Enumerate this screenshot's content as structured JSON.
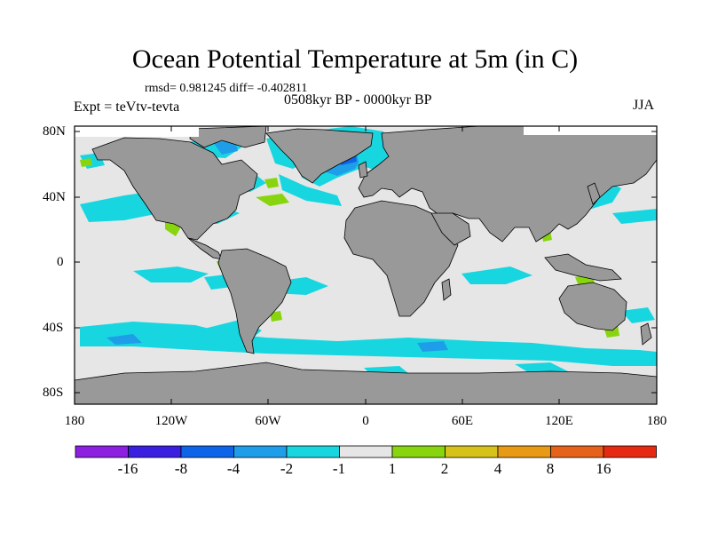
{
  "title": "Ocean Potential Temperature at 5m (in C)",
  "stats": "rmsd= 0.981245 diff= -0.402811",
  "experiment": "Expt = teVtv-tevta",
  "period": "0508kyr BP - 0000kyr BP",
  "season": "JJA",
  "lat_labels": [
    "80N",
    "40N",
    "0",
    "40S",
    "80S"
  ],
  "lon_labels": [
    "180",
    "120W",
    "60W",
    "0",
    "60E",
    "120E",
    "180"
  ],
  "colorbar": {
    "labels": [
      "-16",
      "-8",
      "-4",
      "-2",
      "-1",
      "1",
      "2",
      "4",
      "8",
      "16"
    ],
    "colors": [
      "#8c1fe0",
      "#3a1fe0",
      "#0e64e8",
      "#1e9ee8",
      "#18d6e0",
      "#e6e6e6",
      "#88d40e",
      "#d6c21a",
      "#e89a14",
      "#e6621a",
      "#e62a12"
    ]
  },
  "colors": {
    "land": "#999999",
    "ocean_neutral": "#e6e6e6",
    "cool_light": "#18d6e0",
    "cool_mid": "#1e9ee8",
    "cool_dark": "#0e64e8",
    "warm": "#88d40e"
  }
}
